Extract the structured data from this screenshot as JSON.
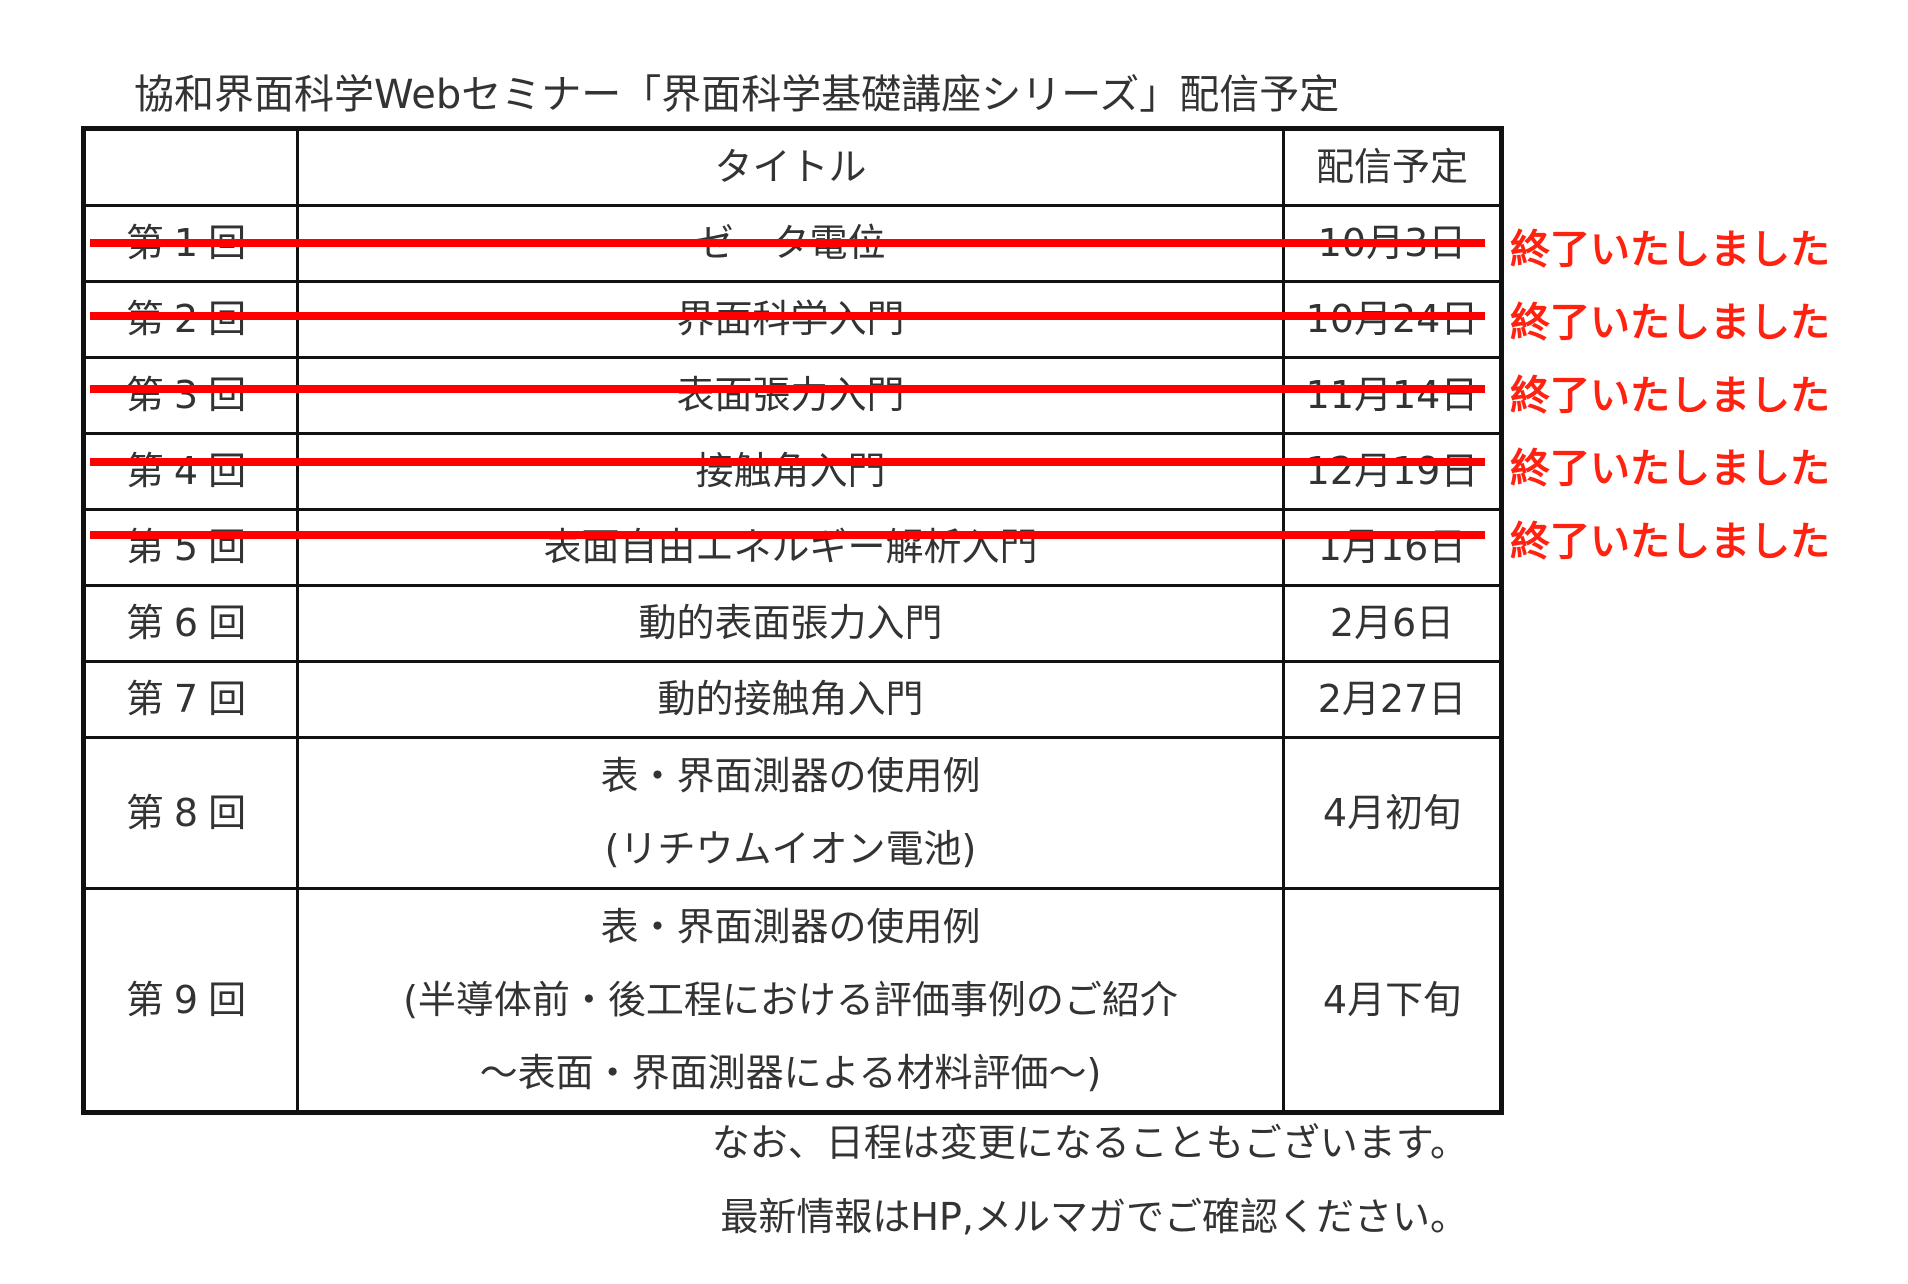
{
  "title": "協和界面科学Webセミナー「界面科学基礎講座シリーズ」配信予定",
  "table": {
    "header": {
      "title": "タイトル",
      "date": "配信予定"
    },
    "rows": [
      {
        "number": "第1回",
        "title": [
          "ゼータ電位"
        ],
        "date": "10月3日",
        "status": "終了いたしました"
      },
      {
        "number": "第2回",
        "title": [
          "界面科学入門"
        ],
        "date": "10月24日",
        "status": "終了いたしました"
      },
      {
        "number": "第3回",
        "title": [
          "表面張力入門"
        ],
        "date": "11月14日",
        "status": "終了いたしました"
      },
      {
        "number": "第4回",
        "title": [
          "接触角入門"
        ],
        "date": "12月19日",
        "status": "終了いたしました"
      },
      {
        "number": "第5回",
        "title": [
          "表面自由エネルギー解析入門"
        ],
        "date": "1月16日",
        "status": "終了いたしました"
      },
      {
        "number": "第6回",
        "title": [
          "動的表面張力入門"
        ],
        "date": "2月6日"
      },
      {
        "number": "第7回",
        "title": [
          "動的接触角入門"
        ],
        "date": "2月27日"
      },
      {
        "number": "第8回",
        "title": [
          "表・界面測器の使用例",
          "(リチウムイオン電池)"
        ],
        "date": "4月初旬"
      },
      {
        "number": "第9回",
        "title": [
          "表・界面測器の使用例",
          "(半導体前・後工程における評価事例のご紹介",
          "～表面・界面測器による材料評価～)"
        ],
        "date": "4月下旬"
      }
    ]
  },
  "footer": [
    "なお、日程は変更になることもございます。",
    "最新情報はHP,メルマガでご確認ください。"
  ]
}
